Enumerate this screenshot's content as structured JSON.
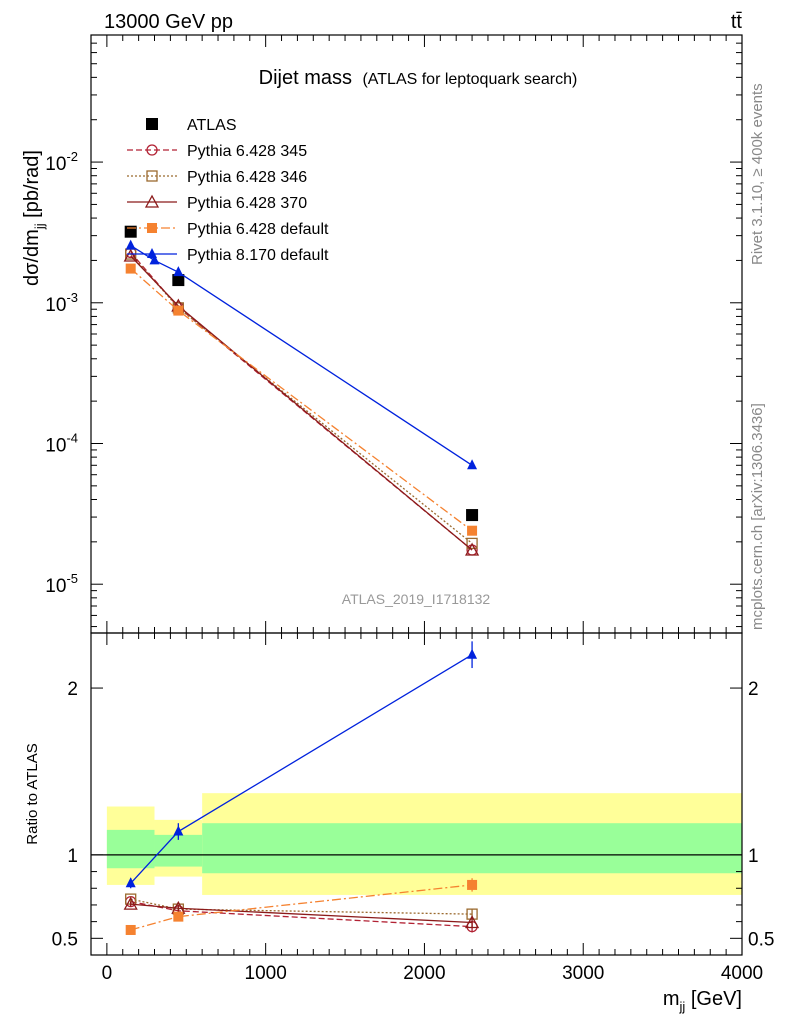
{
  "header": {
    "energy_label": "13000 GeV pp",
    "process_label": "tt̄"
  },
  "side_text": {
    "rivet_label": "Rivet 3.1.10, ≥ 400k events",
    "mcplots_label": "mcplots.cern.ch [arXiv:1306.3436]"
  },
  "chart_data": [
    {
      "type": "line",
      "title": "Dijet mass",
      "subtitle": "(ATLAS for leptoquark search)",
      "ylabel": "dσ/dm_jj [pb/rad]",
      "ylabel_main": "dσ/dm",
      "ylabel_sub": "jj",
      "ylabel_unit": " [pb/rad]",
      "yscale": "log",
      "ylim": [
        4.5e-06,
        0.08
      ],
      "xlim": [
        -100,
        4000
      ],
      "y_ticks": [
        {
          "value": 0.01,
          "base": "10",
          "exp": "-2"
        },
        {
          "value": 0.001,
          "base": "10",
          "exp": "-3"
        },
        {
          "value": 0.0001,
          "base": "10",
          "exp": "-4"
        },
        {
          "value": 1e-05,
          "base": "10",
          "exp": "-5"
        }
      ],
      "watermark": "ATLAS_2019_I1718132",
      "legend_position": "top-left",
      "series": [
        {
          "name": "ATLAS",
          "color": "#000000",
          "marker": "filled-square",
          "line": "none",
          "x": [
            150,
            450,
            2300
          ],
          "y": [
            0.0032,
            0.00145,
            3.1e-05
          ]
        },
        {
          "name": "Pythia 6.428 345",
          "color": "#b22234",
          "marker": "open-circle",
          "line": "dashed",
          "x": [
            150,
            450,
            2300
          ],
          "y": [
            0.00228,
            0.00093,
            1.75e-05
          ]
        },
        {
          "name": "Pythia 6.428 346",
          "color": "#9b6a2f",
          "marker": "open-square",
          "line": "dotted",
          "x": [
            150,
            450,
            2300
          ],
          "y": [
            0.00222,
            0.00092,
            1.95e-05
          ]
        },
        {
          "name": "Pythia 6.428 370",
          "color": "#8b1a1a",
          "marker": "open-triangle",
          "line": "solid",
          "x": [
            150,
            450,
            2300
          ],
          "y": [
            0.00215,
            0.00095,
            1.75e-05
          ]
        },
        {
          "name": "Pythia 6.428 default",
          "color": "#f58230",
          "marker": "filled-square",
          "line": "dashdot",
          "x": [
            150,
            450,
            2300
          ],
          "y": [
            0.00175,
            0.00088,
            2.4e-05
          ]
        },
        {
          "name": "Pythia 8.170 default",
          "color": "#0022dd",
          "marker": "filled-triangle",
          "line": "solid",
          "x": [
            150,
            300,
            450,
            2300
          ],
          "y": [
            0.00255,
            0.002,
            0.00165,
            7e-05
          ]
        }
      ]
    },
    {
      "type": "line",
      "ylabel": "Ratio to ATLAS",
      "xlabel": "m_jj [GeV]",
      "xlabel_main": "m",
      "xlabel_sub": "jj",
      "xlabel_unit": " [GeV]",
      "ylim": [
        0.4,
        2.33
      ],
      "xlim": [
        -100,
        4000
      ],
      "x_ticks": [
        0,
        1000,
        2000,
        3000,
        4000
      ],
      "y_ticks": [
        0.5,
        1,
        2
      ],
      "reference_line": 1,
      "uncertainty_bands": [
        {
          "x_from": 0,
          "x_to": 300,
          "outer": [
            0.82,
            1.29
          ],
          "inner": [
            0.92,
            1.15
          ]
        },
        {
          "x_from": 300,
          "x_to": 600,
          "outer": [
            0.87,
            1.21
          ],
          "inner": [
            0.93,
            1.12
          ]
        },
        {
          "x_from": 600,
          "x_to": 4000,
          "outer": [
            0.76,
            1.37
          ],
          "inner": [
            0.89,
            1.19
          ]
        }
      ],
      "series": [
        {
          "name": "Pythia 6.428 345",
          "color": "#b22234",
          "marker": "open-circle",
          "line": "dashed",
          "x": [
            150,
            450,
            2300
          ],
          "y": [
            0.72,
            0.665,
            0.57
          ],
          "err": [
            0.015,
            0.02,
            0.035
          ]
        },
        {
          "name": "Pythia 6.428 346",
          "color": "#9b6a2f",
          "marker": "open-square",
          "line": "dotted",
          "x": [
            150,
            450,
            2300
          ],
          "y": [
            0.735,
            0.675,
            0.645
          ],
          "err": [
            0.015,
            0.02,
            0.03
          ]
        },
        {
          "name": "Pythia 6.428 370",
          "color": "#8b1a1a",
          "marker": "open-triangle",
          "line": "solid",
          "x": [
            150,
            450,
            2300
          ],
          "y": [
            0.705,
            0.68,
            0.595
          ],
          "err": [
            0.015,
            0.02,
            0.035
          ]
        },
        {
          "name": "Pythia 6.428 default",
          "color": "#f58230",
          "marker": "filled-square",
          "line": "dashdot",
          "x": [
            150,
            450,
            2300
          ],
          "y": [
            0.55,
            0.63,
            0.82
          ],
          "err": [
            0.01,
            0.02,
            0.04
          ]
        },
        {
          "name": "Pythia 8.170 default",
          "color": "#0022dd",
          "marker": "filled-triangle",
          "line": "solid",
          "x": [
            150,
            450,
            2300
          ],
          "y": [
            0.83,
            1.14,
            2.2
          ],
          "err": [
            0.03,
            0.05,
            0.08
          ]
        }
      ]
    }
  ]
}
